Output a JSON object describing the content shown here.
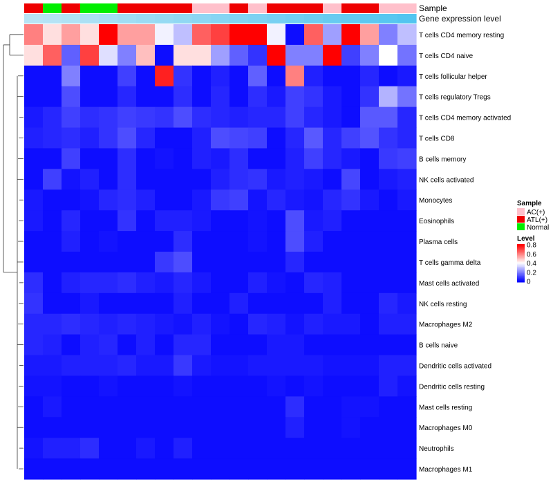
{
  "chart_data": {
    "type": "heatmap",
    "annotation_tracks": [
      {
        "name": "Sample",
        "values": [
          "ATL(+)",
          "Normal",
          "ATL(+)",
          "Normal",
          "Normal",
          "ATL(+)",
          "ATL(+)",
          "ATL(+)",
          "ATL(+)",
          "AC(+)",
          "AC(+)",
          "ATL(+)",
          "AC(+)",
          "ATL(+)",
          "ATL(+)",
          "ATL(+)",
          "AC(+)",
          "ATL(+)",
          "ATL(+)",
          "AC(+)",
          "AC(+)"
        ]
      },
      {
        "name": "Gene expression level",
        "values": [
          0.85,
          0.84,
          0.82,
          0.8,
          0.78,
          0.76,
          0.74,
          0.72,
          0.7,
          0.68,
          0.66,
          0.64,
          0.62,
          0.6,
          0.58,
          0.56,
          0.54,
          0.52,
          0.5,
          0.48,
          0.46
        ]
      }
    ],
    "rows": [
      "T cells CD4 memory resting",
      "T cells CD4 naive",
      "T cells follicular helper",
      "T cells regulatory  Tregs",
      "T cells CD4 memory activated",
      "T cells CD8",
      "B cells memory",
      "NK cells activated",
      "Monocytes",
      "Eosinophils",
      "Plasma cells",
      "T cells gamma delta",
      "Mast cells activated",
      "NK cells resting",
      "Macrophages M2",
      "B cells naive",
      "Dendritic cells activated",
      "Dendritic cells resting",
      "Mast cells resting",
      "Macrophages M0",
      "Neutrophils",
      "Macrophages M1"
    ],
    "values": [
      [
        0.6,
        0.45,
        0.55,
        0.45,
        0.8,
        0.55,
        0.55,
        0.38,
        0.3,
        0.65,
        0.7,
        0.8,
        0.8,
        0.38,
        0.02,
        0.65,
        0.25,
        0.8,
        0.55,
        0.2,
        0.3
      ],
      [
        0.45,
        0.65,
        0.15,
        0.7,
        0.35,
        0.2,
        0.5,
        0.02,
        0.45,
        0.45,
        0.25,
        0.15,
        0.08,
        0.8,
        0.2,
        0.2,
        0.8,
        0.1,
        0.2,
        0.4,
        0.18
      ],
      [
        0.02,
        0.02,
        0.2,
        0.02,
        0.02,
        0.1,
        0.02,
        0.75,
        0.08,
        0.02,
        0.05,
        0.02,
        0.15,
        0.02,
        0.6,
        0.05,
        0.02,
        0.02,
        0.06,
        0.02,
        0.04
      ],
      [
        0.02,
        0.02,
        0.12,
        0.02,
        0.02,
        0.06,
        0.02,
        0.02,
        0.07,
        0.02,
        0.06,
        0.02,
        0.07,
        0.04,
        0.1,
        0.08,
        0.04,
        0.02,
        0.08,
        0.28,
        0.18
      ],
      [
        0.04,
        0.06,
        0.1,
        0.07,
        0.08,
        0.1,
        0.09,
        0.08,
        0.12,
        0.07,
        0.06,
        0.05,
        0.06,
        0.06,
        0.1,
        0.06,
        0.04,
        0.02,
        0.14,
        0.14,
        0.06
      ],
      [
        0.05,
        0.06,
        0.07,
        0.05,
        0.08,
        0.12,
        0.06,
        0.02,
        0.02,
        0.05,
        0.12,
        0.11,
        0.1,
        0.02,
        0.06,
        0.14,
        0.06,
        0.1,
        0.13,
        0.08,
        0.06
      ],
      [
        0.02,
        0.02,
        0.1,
        0.02,
        0.02,
        0.07,
        0.02,
        0.03,
        0.02,
        0.05,
        0.04,
        0.07,
        0.02,
        0.02,
        0.05,
        0.1,
        0.06,
        0.04,
        0.02,
        0.09,
        0.1
      ],
      [
        0.02,
        0.1,
        0.03,
        0.05,
        0.02,
        0.07,
        0.02,
        0.02,
        0.02,
        0.02,
        0.05,
        0.07,
        0.08,
        0.04,
        0.05,
        0.04,
        0.02,
        0.11,
        0.02,
        0.04,
        0.05
      ],
      [
        0.04,
        0.02,
        0.02,
        0.03,
        0.06,
        0.07,
        0.05,
        0.02,
        0.02,
        0.04,
        0.09,
        0.1,
        0.03,
        0.06,
        0.04,
        0.03,
        0.06,
        0.08,
        0.04,
        0.02,
        0.04
      ],
      [
        0.04,
        0.02,
        0.06,
        0.02,
        0.02,
        0.08,
        0.02,
        0.05,
        0.05,
        0.04,
        0.02,
        0.02,
        0.03,
        0.02,
        0.12,
        0.04,
        0.05,
        0.02,
        0.02,
        0.02,
        0.02
      ],
      [
        0.02,
        0.02,
        0.05,
        0.02,
        0.03,
        0.02,
        0.02,
        0.02,
        0.07,
        0.02,
        0.02,
        0.02,
        0.03,
        0.02,
        0.12,
        0.05,
        0.02,
        0.02,
        0.02,
        0.02,
        0.02
      ],
      [
        0.02,
        0.02,
        0.02,
        0.02,
        0.02,
        0.02,
        0.02,
        0.09,
        0.12,
        0.02,
        0.02,
        0.02,
        0.02,
        0.02,
        0.06,
        0.02,
        0.02,
        0.02,
        0.02,
        0.02,
        0.02
      ],
      [
        0.07,
        0.02,
        0.05,
        0.06,
        0.06,
        0.07,
        0.05,
        0.04,
        0.06,
        0.04,
        0.02,
        0.02,
        0.05,
        0.03,
        0.02,
        0.06,
        0.05,
        0.02,
        0.02,
        0.02,
        0.02
      ],
      [
        0.08,
        0.02,
        0.02,
        0.04,
        0.02,
        0.02,
        0.02,
        0.02,
        0.05,
        0.02,
        0.02,
        0.05,
        0.02,
        0.02,
        0.02,
        0.02,
        0.05,
        0.02,
        0.02,
        0.06,
        0.04
      ],
      [
        0.06,
        0.06,
        0.07,
        0.06,
        0.05,
        0.06,
        0.05,
        0.04,
        0.03,
        0.05,
        0.03,
        0.02,
        0.06,
        0.05,
        0.03,
        0.05,
        0.04,
        0.04,
        0.02,
        0.05,
        0.05
      ],
      [
        0.06,
        0.05,
        0.02,
        0.05,
        0.06,
        0.02,
        0.05,
        0.02,
        0.06,
        0.06,
        0.02,
        0.02,
        0.02,
        0.04,
        0.04,
        0.02,
        0.02,
        0.02,
        0.02,
        0.02,
        0.02
      ],
      [
        0.04,
        0.04,
        0.05,
        0.05,
        0.05,
        0.06,
        0.04,
        0.04,
        0.09,
        0.04,
        0.03,
        0.03,
        0.04,
        0.04,
        0.04,
        0.04,
        0.03,
        0.03,
        0.03,
        0.05,
        0.05
      ],
      [
        0.03,
        0.03,
        0.02,
        0.02,
        0.03,
        0.02,
        0.02,
        0.02,
        0.03,
        0.02,
        0.02,
        0.02,
        0.02,
        0.03,
        0.02,
        0.03,
        0.02,
        0.02,
        0.02,
        0.05,
        0.03
      ],
      [
        0.02,
        0.04,
        0.02,
        0.02,
        0.02,
        0.02,
        0.02,
        0.02,
        0.02,
        0.02,
        0.02,
        0.02,
        0.02,
        0.02,
        0.07,
        0.02,
        0.02,
        0.03,
        0.03,
        0.02,
        0.02
      ],
      [
        0.02,
        0.02,
        0.02,
        0.02,
        0.02,
        0.02,
        0.02,
        0.02,
        0.02,
        0.02,
        0.02,
        0.02,
        0.02,
        0.02,
        0.05,
        0.02,
        0.02,
        0.03,
        0.02,
        0.02,
        0.02
      ],
      [
        0.03,
        0.05,
        0.05,
        0.07,
        0.02,
        0.02,
        0.04,
        0.02,
        0.05,
        0.02,
        0.02,
        0.02,
        0.02,
        0.02,
        0.02,
        0.02,
        0.02,
        0.02,
        0.02,
        0.02,
        0.02
      ],
      [
        0.02,
        0.02,
        0.02,
        0.02,
        0.02,
        0.02,
        0.02,
        0.02,
        0.02,
        0.02,
        0.02,
        0.02,
        0.02,
        0.02,
        0.02,
        0.02,
        0.02,
        0.02,
        0.02,
        0.02,
        0.02
      ]
    ],
    "legend_sample": {
      "title": "Sample",
      "items": [
        {
          "label": "AC(+)",
          "color": "#ffc0cb"
        },
        {
          "label": "ATL(+)",
          "color": "#ee0000"
        },
        {
          "label": "Normal",
          "color": "#00ee00"
        }
      ]
    },
    "legend_level": {
      "title": "Level",
      "ticks": [
        "0.8",
        "0.6",
        "0.4",
        "0.2",
        "0"
      ],
      "range": [
        0,
        0.8
      ]
    },
    "colors": {
      "low": "#0000ff",
      "mid": "#ffffff",
      "high": "#ff0000",
      "expr_low": "#b8e4f5",
      "expr_high": "#52c5f0"
    }
  }
}
